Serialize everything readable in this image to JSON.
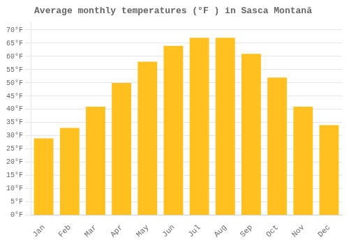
{
  "chart_data": {
    "type": "bar",
    "title": "Average monthly temperatures (°F ) in Sasca Montană",
    "categories": [
      "Jan",
      "Feb",
      "Mar",
      "Apr",
      "May",
      "Jun",
      "Jul",
      "Aug",
      "Sep",
      "Oct",
      "Nov",
      "Dec"
    ],
    "values": [
      29,
      33,
      41,
      50,
      58,
      64,
      67,
      67,
      61,
      52,
      41,
      34
    ],
    "color": "#FFC020",
    "ylim": [
      0,
      73
    ],
    "yticks": [
      {
        "value": 0,
        "label": "0°F"
      },
      {
        "value": 5,
        "label": "5°F"
      },
      {
        "value": 10,
        "label": "10°F"
      },
      {
        "value": 15,
        "label": "15°F"
      },
      {
        "value": 20,
        "label": "20°F"
      },
      {
        "value": 25,
        "label": "25°F"
      },
      {
        "value": 30,
        "label": "30°F"
      },
      {
        "value": 35,
        "label": "35°F"
      },
      {
        "value": 40,
        "label": "40°F"
      },
      {
        "value": 45,
        "label": "45°F"
      },
      {
        "value": 50,
        "label": "50°F"
      },
      {
        "value": 55,
        "label": "55°F"
      },
      {
        "value": 60,
        "label": "60°F"
      },
      {
        "value": 65,
        "label": "65°F"
      },
      {
        "value": 70,
        "label": "70°F"
      }
    ],
    "grid": true
  }
}
